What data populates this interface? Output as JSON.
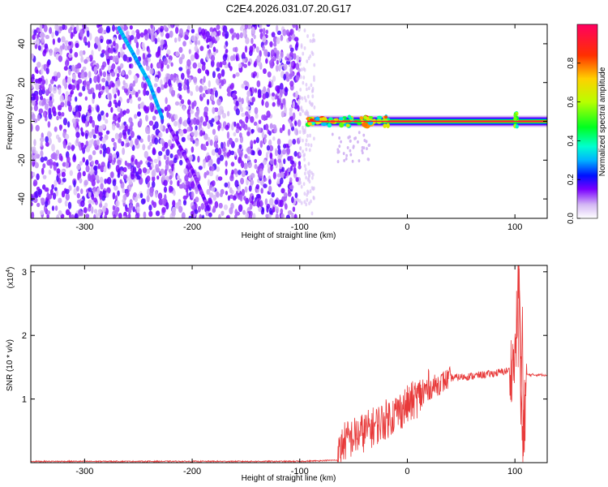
{
  "title": "C2E4.2026.031.07.20.G17",
  "colorbar": {
    "label": "Normalized spectral amplitude",
    "ticks": [
      "0.0",
      "0.2",
      "0.4",
      "0.6",
      "0.8"
    ],
    "tick_values": [
      0.0,
      0.2,
      0.4,
      0.6,
      0.8
    ],
    "range": [
      0,
      1
    ],
    "stops": [
      {
        "v": 0.0,
        "color": "#ffffff"
      },
      {
        "v": 0.07,
        "color": "#d4b8f4"
      },
      {
        "v": 0.15,
        "color": "#7a00ff"
      },
      {
        "v": 0.22,
        "color": "#0010ff"
      },
      {
        "v": 0.3,
        "color": "#00b4ff"
      },
      {
        "v": 0.37,
        "color": "#00ffd0"
      },
      {
        "v": 0.47,
        "color": "#00ff20"
      },
      {
        "v": 0.6,
        "color": "#b8ff00"
      },
      {
        "v": 0.72,
        "color": "#ffd000"
      },
      {
        "v": 0.84,
        "color": "#ff3000"
      },
      {
        "v": 1.0,
        "color": "#ff0060"
      }
    ]
  },
  "chart_data": [
    {
      "type": "heatmap",
      "xlabel": "Height of straight line (km)",
      "ylabel": "Frequency (Hz)",
      "xlim": [
        -350,
        130
      ],
      "ylim": [
        -50,
        50
      ],
      "xticks": [
        -300,
        -200,
        -100,
        0,
        100
      ],
      "xtick_labels": [
        "-300",
        "-200",
        "-100",
        "0",
        "100"
      ],
      "yticks": [
        -40,
        -20,
        0,
        20,
        40
      ],
      "ytick_labels": [
        "-40",
        "-20",
        "0",
        "20",
        "40"
      ],
      "noise_region": {
        "x_range": [
          -350,
          -100
        ],
        "freq_range": [
          -50,
          50
        ],
        "amplitude_range": [
          0.05,
          0.18
        ]
      },
      "features": [
        {
          "name": "descending chirp",
          "points": [
            [
              -268,
              48
            ],
            [
              -255,
              35
            ],
            [
              -240,
              20
            ],
            [
              -228,
              2
            ]
          ],
          "amplitude": 0.3
        },
        {
          "name": "faint descending track",
          "points": [
            [
              -222,
              -2
            ],
            [
              -200,
              -25
            ],
            [
              -185,
              -45
            ]
          ],
          "amplitude": 0.14
        },
        {
          "name": "signal line",
          "x_range": [
            -93,
            130
          ],
          "freq": 0,
          "amplitude": 0.95
        },
        {
          "name": "signal burst",
          "x": 101,
          "freq_range": [
            -3,
            5
          ],
          "amplitude": 0.5
        }
      ]
    },
    {
      "type": "line",
      "xlabel": "Height of straight line (km)",
      "ylabel": "SNR (10 * v/v)",
      "multiplier_label": "(x10",
      "multiplier_exponent": "4",
      "multiplier_close": ")",
      "xlim": [
        -350,
        130
      ],
      "ylim": [
        0,
        3.1
      ],
      "xticks": [
        -300,
        -200,
        -100,
        0,
        100
      ],
      "xtick_labels": [
        "-300",
        "-200",
        "-100",
        "0",
        "100"
      ],
      "yticks": [
        1,
        2,
        3
      ],
      "ytick_labels": [
        "1",
        "2",
        "3"
      ],
      "color": "#e83a3a",
      "series": [
        {
          "name": "SNR",
          "points": [
            [
              -350,
              0.02
            ],
            [
              -100,
              0.02
            ],
            [
              -65,
              0.04
            ],
            [
              -60,
              0.32
            ],
            [
              -40,
              0.48
            ],
            [
              -20,
              0.68
            ],
            [
              0,
              0.9
            ],
            [
              20,
              1.16
            ],
            [
              40,
              1.33
            ],
            [
              60,
              1.36
            ],
            [
              80,
              1.4
            ],
            [
              95,
              1.45
            ],
            [
              100,
              1.6
            ],
            [
              104,
              3.05
            ],
            [
              107,
              0.1
            ],
            [
              111,
              1.38
            ],
            [
              130,
              1.38
            ]
          ]
        }
      ]
    }
  ]
}
